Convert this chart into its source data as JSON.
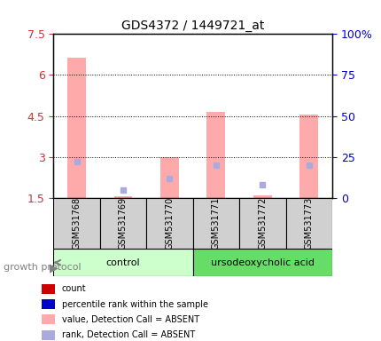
{
  "title": "GDS4372 / 1449721_at",
  "samples": [
    "GSM531768",
    "GSM531769",
    "GSM531770",
    "GSM531771",
    "GSM531772",
    "GSM531773"
  ],
  "groups": [
    "control",
    "control",
    "control",
    "ursodeoxycholic acid",
    "ursodeoxycholic acid",
    "ursodeoxycholic acid"
  ],
  "group_colors": [
    "#aaffaa",
    "#55dd55"
  ],
  "ylim_left": [
    1.5,
    7.5
  ],
  "ylim_right": [
    0,
    100
  ],
  "yticks_left": [
    1.5,
    3.0,
    4.5,
    6.0,
    7.5
  ],
  "ytick_labels_left": [
    "1.5",
    "3",
    "4.5",
    "6",
    "7.5"
  ],
  "yticks_right": [
    0,
    25,
    50,
    75,
    100
  ],
  "ytick_labels_right": [
    "0",
    "25",
    "50",
    "75",
    "100%"
  ],
  "pink_bar_values": [
    6.65,
    1.55,
    3.0,
    4.65,
    1.6,
    4.55
  ],
  "blue_dot_values_pct": [
    22,
    5,
    12,
    20,
    8,
    20
  ],
  "bar_bottom": 1.5,
  "bar_width": 0.4,
  "pink_color": "#ffaaaa",
  "blue_color": "#aaaadd",
  "legend_items": [
    {
      "color": "#cc0000",
      "marker": "s",
      "label": "count"
    },
    {
      "color": "#0000cc",
      "marker": "s",
      "label": "percentile rank within the sample"
    },
    {
      "color": "#ffaaaa",
      "marker": "s",
      "label": "value, Detection Call = ABSENT"
    },
    {
      "color": "#aaaadd",
      "marker": "s",
      "label": "rank, Detection Call = ABSENT"
    }
  ],
  "ylabel_left_color": "#cc3333",
  "ylabel_right_color": "#0000cc",
  "group_label": "growth protocol",
  "grid_color": "#000000",
  "bg_color": "#ffffff",
  "plot_bg": "#ffffff",
  "left_tick_color": "#cc3333",
  "right_tick_color": "#0000cc"
}
